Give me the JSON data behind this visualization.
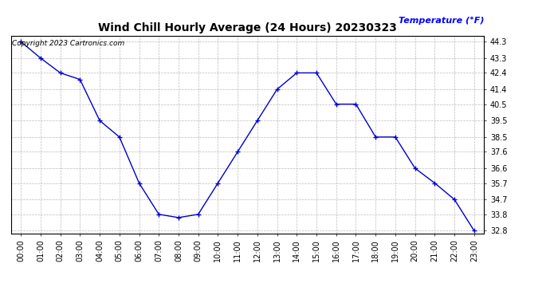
{
  "title": "Wind Chill Hourly Average (24 Hours) 20230323",
  "ylabel": "Temperature (°F)",
  "copyright": "Copyright 2023 Cartronics.com",
  "hours": [
    "00:00",
    "01:00",
    "02:00",
    "03:00",
    "04:00",
    "05:00",
    "06:00",
    "07:00",
    "08:00",
    "09:00",
    "10:00",
    "11:00",
    "12:00",
    "13:00",
    "14:00",
    "15:00",
    "16:00",
    "17:00",
    "18:00",
    "19:00",
    "20:00",
    "21:00",
    "22:00",
    "23:00"
  ],
  "values": [
    44.3,
    43.3,
    42.4,
    42.0,
    39.5,
    38.5,
    35.7,
    33.8,
    33.6,
    33.8,
    35.7,
    37.6,
    39.5,
    41.4,
    42.4,
    42.4,
    40.5,
    40.5,
    38.5,
    38.5,
    36.6,
    35.7,
    34.7,
    32.8
  ],
  "line_color": "#0000cc",
  "marker_color": "#0000cc",
  "bg_color": "#ffffff",
  "grid_color": "#bbbbbb",
  "ylabel_color": "#0000ff",
  "title_color": "#000000",
  "copyright_color": "#000000",
  "ylim_min": 32.8,
  "ylim_max": 44.3,
  "yticks": [
    44.3,
    43.3,
    42.4,
    41.4,
    40.5,
    39.5,
    38.5,
    37.6,
    36.6,
    35.7,
    34.7,
    33.8,
    32.8
  ],
  "title_fontsize": 10,
  "tick_fontsize": 7,
  "ylabel_fontsize": 8,
  "copyright_fontsize": 6.5
}
